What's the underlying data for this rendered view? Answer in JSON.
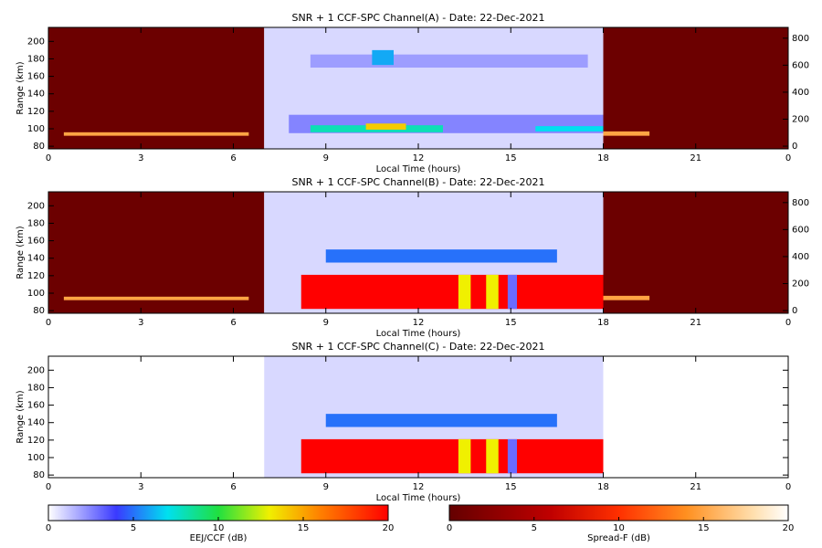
{
  "chart_data": [
    {
      "type": "heatmap",
      "title": "SNR + 1 CCF-SPC Channel(A) - Date: 22-Dec-2021",
      "xlabel": "Local Time (hours)",
      "ylabel": "Range (km)",
      "xlim": [
        0,
        24
      ],
      "xticks": [
        0,
        3,
        6,
        9,
        12,
        15,
        18,
        21,
        {
          "value": 24,
          "label": "0"
        }
      ],
      "ylim": [
        77,
        216
      ],
      "yticks": [
        80,
        100,
        120,
        140,
        160,
        180,
        200
      ],
      "y2lim": [
        -20,
        880
      ],
      "y2ticks": [
        0,
        200,
        400,
        600,
        800
      ],
      "cells": [
        {
          "x": [
            0,
            7
          ],
          "y": [
            77,
            216
          ],
          "value": 0.5,
          "colorbar": 1
        },
        {
          "x": [
            0.5,
            6.5
          ],
          "y": [
            92,
            96
          ],
          "value": 15,
          "colorbar": 1
        },
        {
          "x": [
            18,
            24
          ],
          "y": [
            77,
            216
          ],
          "value": 0.5,
          "colorbar": 1
        },
        {
          "x": [
            18,
            19.5
          ],
          "y": [
            92,
            97
          ],
          "value": 15,
          "colorbar": 1
        },
        {
          "x": [
            7,
            18
          ],
          "y": [
            77,
            216
          ],
          "value": 0.8,
          "colorbar": 0
        },
        {
          "x": [
            7.8,
            18
          ],
          "y": [
            95,
            116
          ],
          "value": 2.5,
          "colorbar": 0
        },
        {
          "x": [
            8.5,
            12.8
          ],
          "y": [
            96,
            104
          ],
          "value": 8,
          "colorbar": 0
        },
        {
          "x": [
            15.8,
            18
          ],
          "y": [
            97,
            103
          ],
          "value": 7,
          "colorbar": 0
        },
        {
          "x": [
            10.3,
            11.6
          ],
          "y": [
            99,
            106
          ],
          "value": 14,
          "colorbar": 0
        },
        {
          "x": [
            8.5,
            17.5
          ],
          "y": [
            170,
            185
          ],
          "value": 2,
          "colorbar": 0
        },
        {
          "x": [
            10.5,
            11.2
          ],
          "y": [
            173,
            190
          ],
          "value": 6,
          "colorbar": 0
        }
      ]
    },
    {
      "type": "heatmap",
      "title": "SNR + 1 CCF-SPC Channel(B) - Date: 22-Dec-2021",
      "xlabel": "Local Time (hours)",
      "ylabel": "Range (km)",
      "xlim": [
        0,
        24
      ],
      "xticks": [
        0,
        3,
        6,
        9,
        12,
        15,
        18,
        21,
        {
          "value": 24,
          "label": "0"
        }
      ],
      "ylim": [
        77,
        216
      ],
      "yticks": [
        80,
        100,
        120,
        140,
        160,
        180,
        200
      ],
      "y2lim": [
        -20,
        880
      ],
      "y2ticks": [
        0,
        200,
        400,
        600,
        800
      ],
      "cells": [
        {
          "x": [
            0,
            7
          ],
          "y": [
            77,
            216
          ],
          "value": 0.5,
          "colorbar": 1
        },
        {
          "x": [
            0.5,
            6.5
          ],
          "y": [
            92,
            96
          ],
          "value": 15,
          "colorbar": 1
        },
        {
          "x": [
            18,
            24
          ],
          "y": [
            77,
            216
          ],
          "value": 0.5,
          "colorbar": 1
        },
        {
          "x": [
            18,
            19.5
          ],
          "y": [
            92,
            97
          ],
          "value": 15,
          "colorbar": 1
        },
        {
          "x": [
            7,
            18
          ],
          "y": [
            77,
            216
          ],
          "value": 0.8,
          "colorbar": 0
        },
        {
          "x": [
            9,
            16.5
          ],
          "y": [
            135,
            150
          ],
          "value": 5,
          "colorbar": 0
        },
        {
          "x": [
            8.2,
            18
          ],
          "y": [
            82,
            121
          ],
          "value": 20,
          "colorbar": 0
        },
        {
          "x": [
            13.3,
            13.7
          ],
          "y": [
            82,
            121
          ],
          "value": 13,
          "colorbar": 0
        },
        {
          "x": [
            14.2,
            14.6
          ],
          "y": [
            82,
            121
          ],
          "value": 13,
          "colorbar": 0
        },
        {
          "x": [
            14.9,
            15.2
          ],
          "y": [
            82,
            121
          ],
          "value": 3,
          "colorbar": 0
        }
      ]
    },
    {
      "type": "heatmap",
      "title": "SNR + 1 CCF-SPC Channel(C) - Date: 22-Dec-2021",
      "xlabel": "Local Time (hours)",
      "ylabel": "Range (km)",
      "xlim": [
        0,
        24
      ],
      "xticks": [
        0,
        3,
        6,
        9,
        12,
        15,
        18,
        21,
        {
          "value": 24,
          "label": "0"
        }
      ],
      "ylim": [
        77,
        216
      ],
      "yticks": [
        80,
        100,
        120,
        140,
        160,
        180,
        200
      ],
      "cells": [
        {
          "x": [
            7,
            18
          ],
          "y": [
            77,
            216
          ],
          "value": 0.8,
          "colorbar": 0
        },
        {
          "x": [
            9,
            16.5
          ],
          "y": [
            135,
            150
          ],
          "value": 5,
          "colorbar": 0
        },
        {
          "x": [
            8.2,
            18
          ],
          "y": [
            82,
            121
          ],
          "value": 20,
          "colorbar": 0
        },
        {
          "x": [
            13.3,
            13.7
          ],
          "y": [
            82,
            121
          ],
          "value": 13,
          "colorbar": 0
        },
        {
          "x": [
            14.2,
            14.6
          ],
          "y": [
            82,
            121
          ],
          "value": 13,
          "colorbar": 0
        },
        {
          "x": [
            14.9,
            15.2
          ],
          "y": [
            82,
            121
          ],
          "value": 3,
          "colorbar": 0
        }
      ]
    },
    {
      "type": "colorbar",
      "xlabel": "EEJ/CCF (dB)",
      "xlim": [
        0,
        20
      ],
      "xticks": [
        0,
        5,
        10,
        15,
        20
      ],
      "cmap": [
        [
          0,
          "#ffffff"
        ],
        [
          4,
          "#3a3aff"
        ],
        [
          7,
          "#00e0f0"
        ],
        [
          10,
          "#20e040"
        ],
        [
          13,
          "#f0f000"
        ],
        [
          16,
          "#ff8000"
        ],
        [
          20,
          "#ff0000"
        ]
      ]
    },
    {
      "type": "colorbar",
      "xlabel": "Spread-F (dB)",
      "xlim": [
        0,
        20
      ],
      "xticks": [
        0,
        5,
        10,
        15,
        20
      ],
      "cmap": [
        [
          0,
          "#640000"
        ],
        [
          6,
          "#c00000"
        ],
        [
          10,
          "#ff3000"
        ],
        [
          14,
          "#ff9020"
        ],
        [
          18,
          "#ffe0b0"
        ],
        [
          20,
          "#ffffff"
        ]
      ]
    }
  ]
}
